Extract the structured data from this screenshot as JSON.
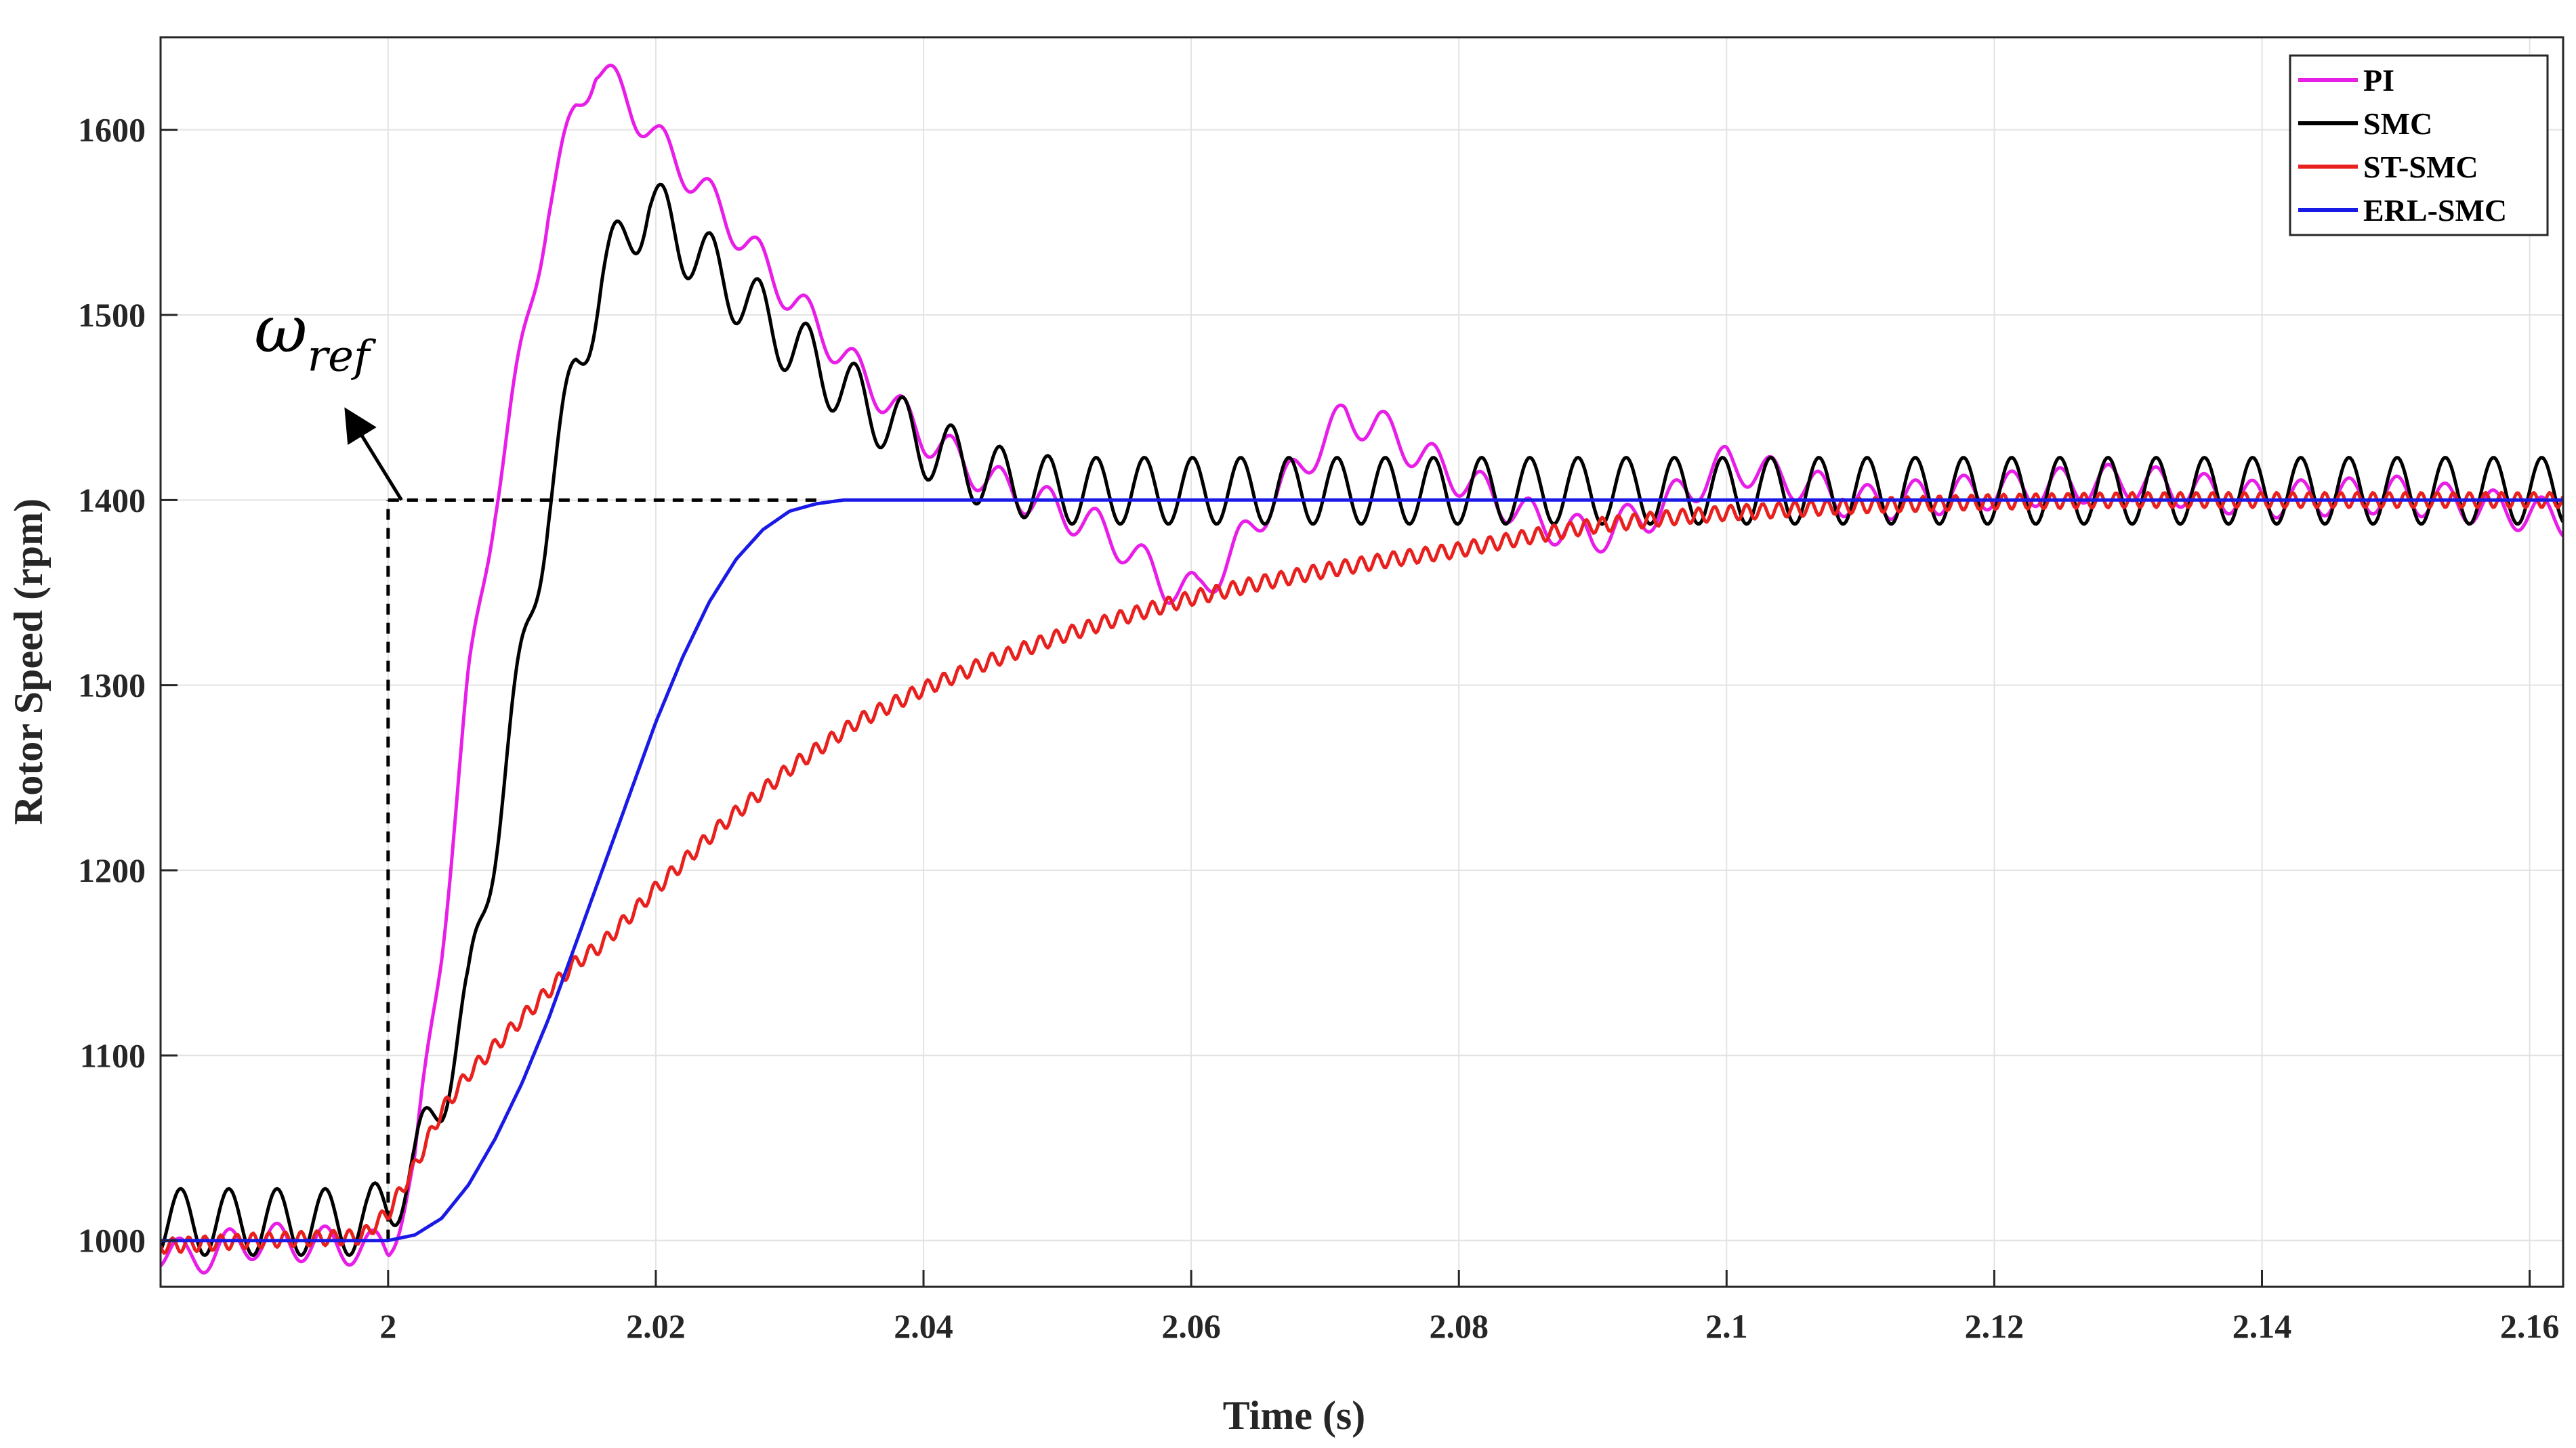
{
  "chart_data": {
    "type": "line",
    "title": "",
    "xlabel": "Time (s)",
    "ylabel": "Rotor Speed (rpm)",
    "xlim": [
      1.983,
      2.1625
    ],
    "ylim": [
      975,
      1650
    ],
    "grid": true,
    "legend_position": "top-right",
    "x_ticks": [
      2,
      2.02,
      2.04,
      2.06,
      2.08,
      2.1,
      2.12,
      2.14,
      2.16
    ],
    "x_tick_labels": [
      "2",
      "2.02",
      "2.04",
      "2.06",
      "2.08",
      "2.1",
      "2.12",
      "2.14",
      "2.16"
    ],
    "y_ticks": [
      1000,
      1100,
      1200,
      1300,
      1400,
      1500,
      1600
    ],
    "y_tick_labels": [
      "1000",
      "1100",
      "1200",
      "1300",
      "1400",
      "1500",
      "1600"
    ],
    "reference": {
      "label_base": "ω",
      "label_sub": "ref",
      "step_time": 2.0,
      "before": 1000,
      "after": 1400,
      "dashed_line_end_x": 2.032,
      "arrow_from": [
        2.001,
        1400
      ],
      "arrow_to": [
        1.997,
        1447
      ],
      "label_at": [
        1.99,
        1480
      ],
      "color": "#000000"
    },
    "series": [
      {
        "name": "PI",
        "color": "#e81ee8",
        "x": [
          1.983,
          1.985,
          1.99,
          1.995,
          2.0,
          2.002,
          2.004,
          2.006,
          2.008,
          2.01,
          2.012,
          2.014,
          2.0155,
          2.018,
          2.02,
          2.022,
          2.025,
          2.03,
          2.035,
          2.04,
          2.045,
          2.05,
          2.053,
          2.055,
          2.058,
          2.0605,
          2.063,
          2.066,
          2.069,
          2.0715,
          2.074,
          2.077,
          2.08,
          2.083,
          2.086,
          2.09,
          2.095,
          2.1,
          2.105,
          2.11,
          2.12,
          2.13,
          2.14,
          2.15,
          2.1625
        ],
        "y": [
          995,
          990,
          1000,
          998,
          995,
          1040,
          1160,
          1300,
          1400,
          1480,
          1560,
          1610,
          1635,
          1615,
          1595,
          1580,
          1555,
          1510,
          1470,
          1435,
          1410,
          1395,
          1385,
          1375,
          1355,
          1350,
          1370,
          1400,
          1425,
          1445,
          1440,
          1425,
          1412,
          1400,
          1388,
          1380,
          1395,
          1420,
          1410,
          1398,
          1405,
          1410,
          1400,
          1403,
          1390
        ],
        "ripple_amp": 10,
        "ripple_period": 0.0036
      },
      {
        "name": "SMC",
        "color": "#000000",
        "x": [
          1.983,
          1.99,
          1.9985,
          2.0,
          2.002,
          2.004,
          2.006,
          2.008,
          2.01,
          2.012,
          2.014,
          2.016,
          2.018,
          2.0195,
          2.022,
          2.025,
          2.03,
          2.035,
          2.04,
          2.045,
          2.05,
          2.06,
          2.07,
          2.08,
          2.1,
          2.12,
          2.14,
          2.1625
        ],
        "y": [
          1010,
          1010,
          1010,
          1020,
          1040,
          1080,
          1130,
          1220,
          1310,
          1400,
          1470,
          1520,
          1545,
          1560,
          1540,
          1520,
          1485,
          1455,
          1430,
          1412,
          1405,
          1405,
          1405,
          1405,
          1405,
          1405,
          1405,
          1405
        ],
        "ripple_amp": 18,
        "ripple_period": 0.0036
      },
      {
        "name": "ST-SMC",
        "color": "#e8201e",
        "x": [
          1.983,
          1.99,
          1.998,
          2.0,
          2.002,
          2.004,
          2.006,
          2.008,
          2.01,
          2.012,
          2.014,
          2.016,
          2.02,
          2.025,
          2.03,
          2.035,
          2.04,
          2.045,
          2.05,
          2.055,
          2.06,
          2.065,
          2.07,
          2.075,
          2.08,
          2.085,
          2.09,
          2.095,
          2.1,
          2.11,
          2.12,
          2.13,
          2.14,
          2.15,
          2.1625
        ],
        "y": [
          997,
          1000,
          1002,
          1015,
          1040,
          1070,
          1090,
          1105,
          1120,
          1135,
          1150,
          1160,
          1190,
          1225,
          1255,
          1280,
          1298,
          1313,
          1326,
          1337,
          1347,
          1355,
          1362,
          1368,
          1373,
          1380,
          1386,
          1390,
          1393,
          1397,
          1399,
          1400,
          1400,
          1400,
          1400
        ],
        "ripple_amp": 4,
        "ripple_period": 0.0012
      },
      {
        "name": "ERL-SMC",
        "color": "#1a1ae6",
        "x": [
          1.983,
          1.99,
          2.0,
          2.002,
          2.004,
          2.006,
          2.008,
          2.01,
          2.012,
          2.014,
          2.016,
          2.018,
          2.02,
          2.022,
          2.024,
          2.026,
          2.028,
          2.03,
          2.032,
          2.034,
          2.036,
          2.04,
          2.06,
          2.1,
          2.1625
        ],
        "y": [
          1000,
          1000,
          1000,
          1003,
          1012,
          1030,
          1055,
          1085,
          1120,
          1160,
          1200,
          1240,
          1280,
          1315,
          1345,
          1368,
          1384,
          1394,
          1398,
          1400,
          1400,
          1400,
          1400,
          1400,
          1400
        ],
        "ripple_amp": 0,
        "ripple_period": 0
      }
    ]
  }
}
